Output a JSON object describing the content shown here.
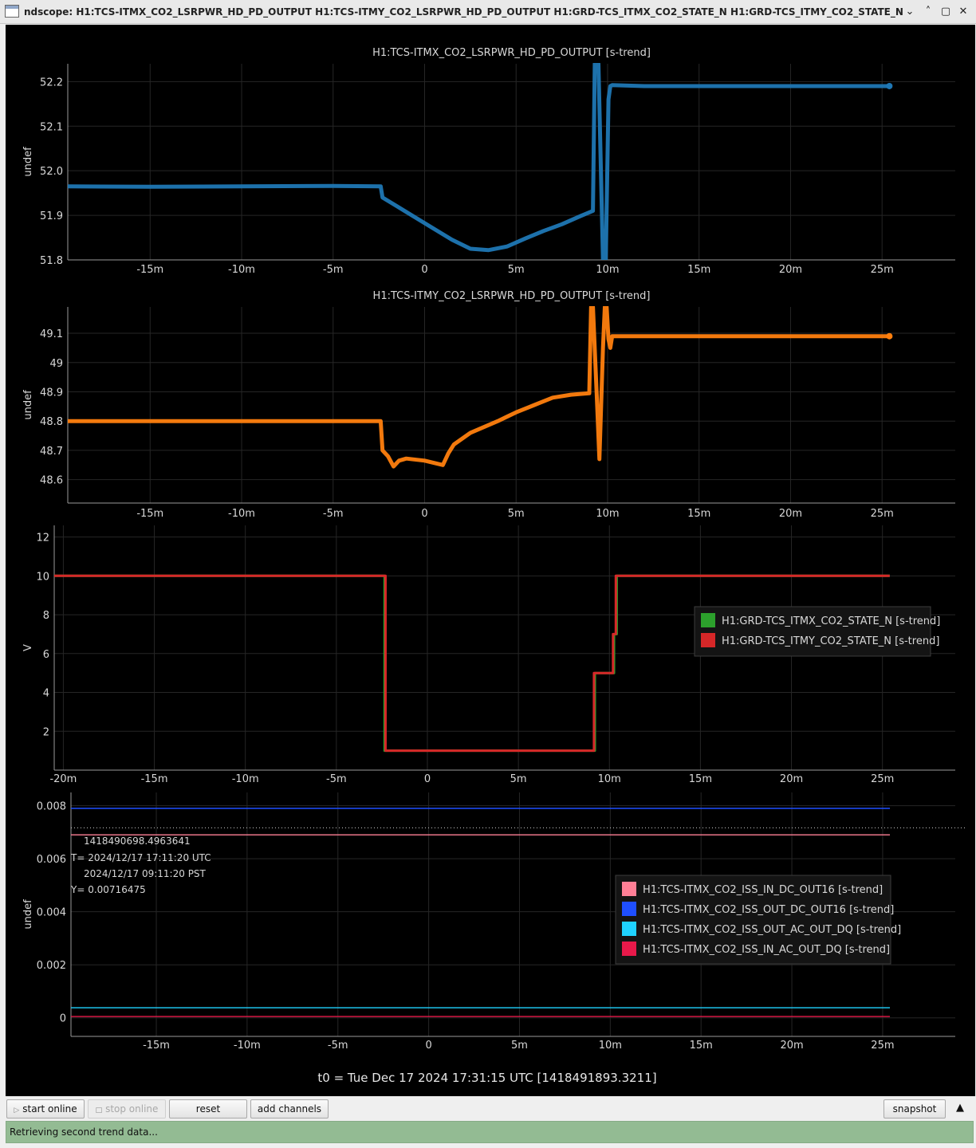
{
  "window": {
    "title": "ndscope: H1:TCS-ITMX_CO2_LSRPWR_HD_PD_OUTPUT H1:TCS-ITMY_CO2_LSRPWR_HD_PD_OUTPUT H1:GRD-TCS_ITMX_CO2_STATE_N H1:GRD-TCS_ITMY_CO2_STATE_N",
    "buttons": {
      "minimize": "⌄",
      "maximize": "˄",
      "restore": "▢",
      "close": "✕"
    }
  },
  "x_ticks": [
    "-15m",
    "-10m",
    "-5m",
    "0",
    "5m",
    "10m",
    "15m",
    "20m",
    "25m"
  ],
  "x_tick_values": [
    -15,
    -10,
    -5,
    0,
    5,
    10,
    15,
    20,
    25
  ],
  "x_ticks_with_20": [
    "-20m",
    "-15m",
    "-10m",
    "-5m",
    "0",
    "5m",
    "10m",
    "15m",
    "20m",
    "25m"
  ],
  "x_tick_values_with_20": [
    -20,
    -15,
    -10,
    -5,
    0,
    5,
    10,
    15,
    20,
    25
  ],
  "plots": [
    {
      "title": "H1:TCS-ITMX_CO2_LSRPWR_HD_PD_OUTPUT [s-trend]",
      "ylabel": "undef",
      "yticks": [
        "51.8",
        "51.9",
        "52.0",
        "52.1",
        "52.2"
      ],
      "ytick_values": [
        51.8,
        51.9,
        52.0,
        52.1,
        52.2
      ],
      "ylim": [
        51.8,
        52.24
      ],
      "xlim": [
        -19.5,
        29
      ]
    },
    {
      "title": "H1:TCS-ITMY_CO2_LSRPWR_HD_PD_OUTPUT [s-trend]",
      "ylabel": "undef",
      "yticks": [
        "48.6",
        "48.7",
        "48.8",
        "48.9",
        "49",
        "49.1"
      ],
      "ytick_values": [
        48.6,
        48.7,
        48.8,
        48.9,
        49.0,
        49.1
      ],
      "ylim": [
        48.52,
        49.19
      ],
      "xlim": [
        -19.5,
        29
      ]
    },
    {
      "title": "",
      "ylabel": "V",
      "yticks": [
        "2",
        "4",
        "6",
        "8",
        "10",
        "12"
      ],
      "ytick_values": [
        2,
        4,
        6,
        8,
        10,
        12
      ],
      "ylim": [
        0,
        12.6
      ],
      "xlim": [
        -20.5,
        29
      ],
      "legend": [
        {
          "label": "H1:GRD-TCS_ITMX_CO2_STATE_N [s-trend]",
          "color": "#2ca02c"
        },
        {
          "label": "H1:GRD-TCS_ITMY_CO2_STATE_N [s-trend]",
          "color": "#d62728"
        }
      ]
    },
    {
      "title": "",
      "ylabel": "undef",
      "yticks": [
        "0",
        "0.002",
        "0.004",
        "0.006",
        "0.008"
      ],
      "ytick_values": [
        0,
        0.002,
        0.004,
        0.006,
        0.008
      ],
      "ylim": [
        -0.0007,
        0.0085
      ],
      "xlim": [
        -19.7,
        29
      ],
      "legend": [
        {
          "label": "H1:TCS-ITMX_CO2_ISS_IN_DC_OUT16 [s-trend]",
          "color": "#ff7f96"
        },
        {
          "label": "H1:TCS-ITMX_CO2_ISS_OUT_DC_OUT16 [s-trend]",
          "color": "#1f4fff"
        },
        {
          "label": "H1:TCS-ITMX_CO2_ISS_OUT_AC_OUT_DQ [s-trend]",
          "color": "#1fd2ff"
        },
        {
          "label": "H1:TCS-ITMX_CO2_ISS_IN_AC_OUT_DQ [s-trend]",
          "color": "#e8194a"
        }
      ],
      "cursor": {
        "gps": "1418490698.4963641",
        "t_utc": "T= 2024/12/17 17:11:20 UTC",
        "t_pst": "2024/12/17 09:11:20 PST",
        "y": "Y= 0.00716475",
        "y_value": 0.00716475
      }
    }
  ],
  "chart_data": [
    {
      "type": "line",
      "title": "H1:TCS-ITMX_CO2_LSRPWR_HD_PD_OUTPUT [s-trend]",
      "ylabel": "undef",
      "ylim": [
        51.8,
        52.24
      ],
      "series": [
        {
          "name": "H1:TCS-ITMX_CO2_LSRPWR_HD_PD_OUTPUT [s-trend]",
          "color": "#1f77b4",
          "x": [
            -19.5,
            -15,
            -10,
            -5,
            -2.4,
            -2.3,
            -1.5,
            -0.5,
            0.5,
            1.5,
            2.5,
            3.5,
            4.5,
            5.5,
            6.5,
            7.5,
            8.5,
            9.2,
            9.3,
            9.5,
            9.75,
            9.9,
            10.05,
            10.15,
            10.25,
            12,
            15,
            20,
            25.4
          ],
          "y": [
            51.965,
            51.964,
            51.965,
            51.966,
            51.965,
            51.94,
            51.92,
            51.895,
            51.87,
            51.845,
            51.825,
            51.822,
            51.83,
            51.848,
            51.865,
            51.88,
            51.898,
            51.91,
            52.24,
            52.24,
            51.8,
            51.8,
            52.16,
            52.19,
            52.192,
            52.19,
            52.19,
            52.19,
            52.19
          ]
        }
      ]
    },
    {
      "type": "line",
      "title": "H1:TCS-ITMY_CO2_LSRPWR_HD_PD_OUTPUT [s-trend]",
      "ylabel": "undef",
      "ylim": [
        48.52,
        49.19
      ],
      "series": [
        {
          "name": "H1:TCS-ITMY_CO2_LSRPWR_HD_PD_OUTPUT [s-trend]",
          "color": "#ff7f0e",
          "x": [
            -19.5,
            -15,
            -10,
            -5,
            -2.4,
            -2.3,
            -2.0,
            -1.7,
            -1.4,
            -1.0,
            0,
            1.0,
            1.3,
            1.6,
            2.5,
            4,
            5,
            6,
            7,
            8,
            9,
            9.1,
            9.2,
            9.4,
            9.55,
            9.75,
            9.85,
            9.95,
            10.05,
            10.15,
            10.25,
            10.35,
            10.5,
            12,
            15,
            20,
            25.4
          ],
          "y": [
            48.8,
            48.8,
            48.8,
            48.8,
            48.8,
            48.7,
            48.68,
            48.645,
            48.665,
            48.672,
            48.665,
            48.65,
            48.69,
            48.72,
            48.76,
            48.8,
            48.83,
            48.855,
            48.88,
            48.89,
            48.895,
            49.19,
            49.19,
            48.9,
            48.67,
            49.05,
            49.19,
            49.19,
            49.08,
            49.05,
            49.09,
            49.09,
            49.09,
            49.09,
            49.09,
            49.09,
            49.09
          ]
        }
      ]
    },
    {
      "type": "line",
      "ylabel": "V",
      "ylim": [
        0,
        12.6
      ],
      "series": [
        {
          "name": "H1:GRD-TCS_ITMX_CO2_STATE_N [s-trend]",
          "color": "#2ca02c",
          "x": [
            -20.5,
            -2.35,
            -2.35,
            9.2,
            9.2,
            10.25,
            10.25,
            10.4,
            10.4,
            25.4
          ],
          "y": [
            10,
            10,
            1,
            1,
            5,
            5,
            7,
            7,
            10,
            10
          ]
        },
        {
          "name": "H1:GRD-TCS_ITMY_CO2_STATE_N [s-trend]",
          "color": "#d62728",
          "x": [
            -20.5,
            -2.3,
            -2.3,
            9.15,
            9.15,
            10.2,
            10.2,
            10.35,
            10.35,
            25.4
          ],
          "y": [
            10,
            10,
            1,
            1,
            5,
            5,
            7,
            7,
            10,
            10
          ]
        }
      ]
    },
    {
      "type": "line",
      "ylabel": "undef",
      "ylim": [
        -0.0007,
        0.0085
      ],
      "series": [
        {
          "name": "H1:TCS-ITMX_CO2_ISS_IN_DC_OUT16 [s-trend]",
          "color": "#ff7f96",
          "x": [
            -19.7,
            25.4
          ],
          "y": [
            0.0069,
            0.0069
          ]
        },
        {
          "name": "H1:TCS-ITMX_CO2_ISS_OUT_DC_OUT16 [s-trend]",
          "color": "#1f4fff",
          "x": [
            -19.7,
            25.4
          ],
          "y": [
            0.0079,
            0.0079
          ]
        },
        {
          "name": "H1:TCS-ITMX_CO2_ISS_OUT_AC_OUT_DQ [s-trend]",
          "color": "#1fd2ff",
          "x": [
            -19.7,
            25.4
          ],
          "y": [
            0.00038,
            0.00038
          ]
        },
        {
          "name": "H1:TCS-ITMX_CO2_ISS_IN_AC_OUT_DQ [s-trend]",
          "color": "#e8194a",
          "x": [
            -19.7,
            25.4
          ],
          "y": [
            5e-05,
            5e-05
          ]
        }
      ]
    }
  ],
  "t0_label": "t0 = Tue Dec 17 2024 17:31:15 UTC [1418491893.3211]",
  "toolbar": {
    "start_online": "start online",
    "stop_online": "stop online",
    "reset": "reset",
    "add_channels": "add channels",
    "snapshot": "snapshot",
    "collapse": "▲"
  },
  "status": "Retrieving second trend data..."
}
